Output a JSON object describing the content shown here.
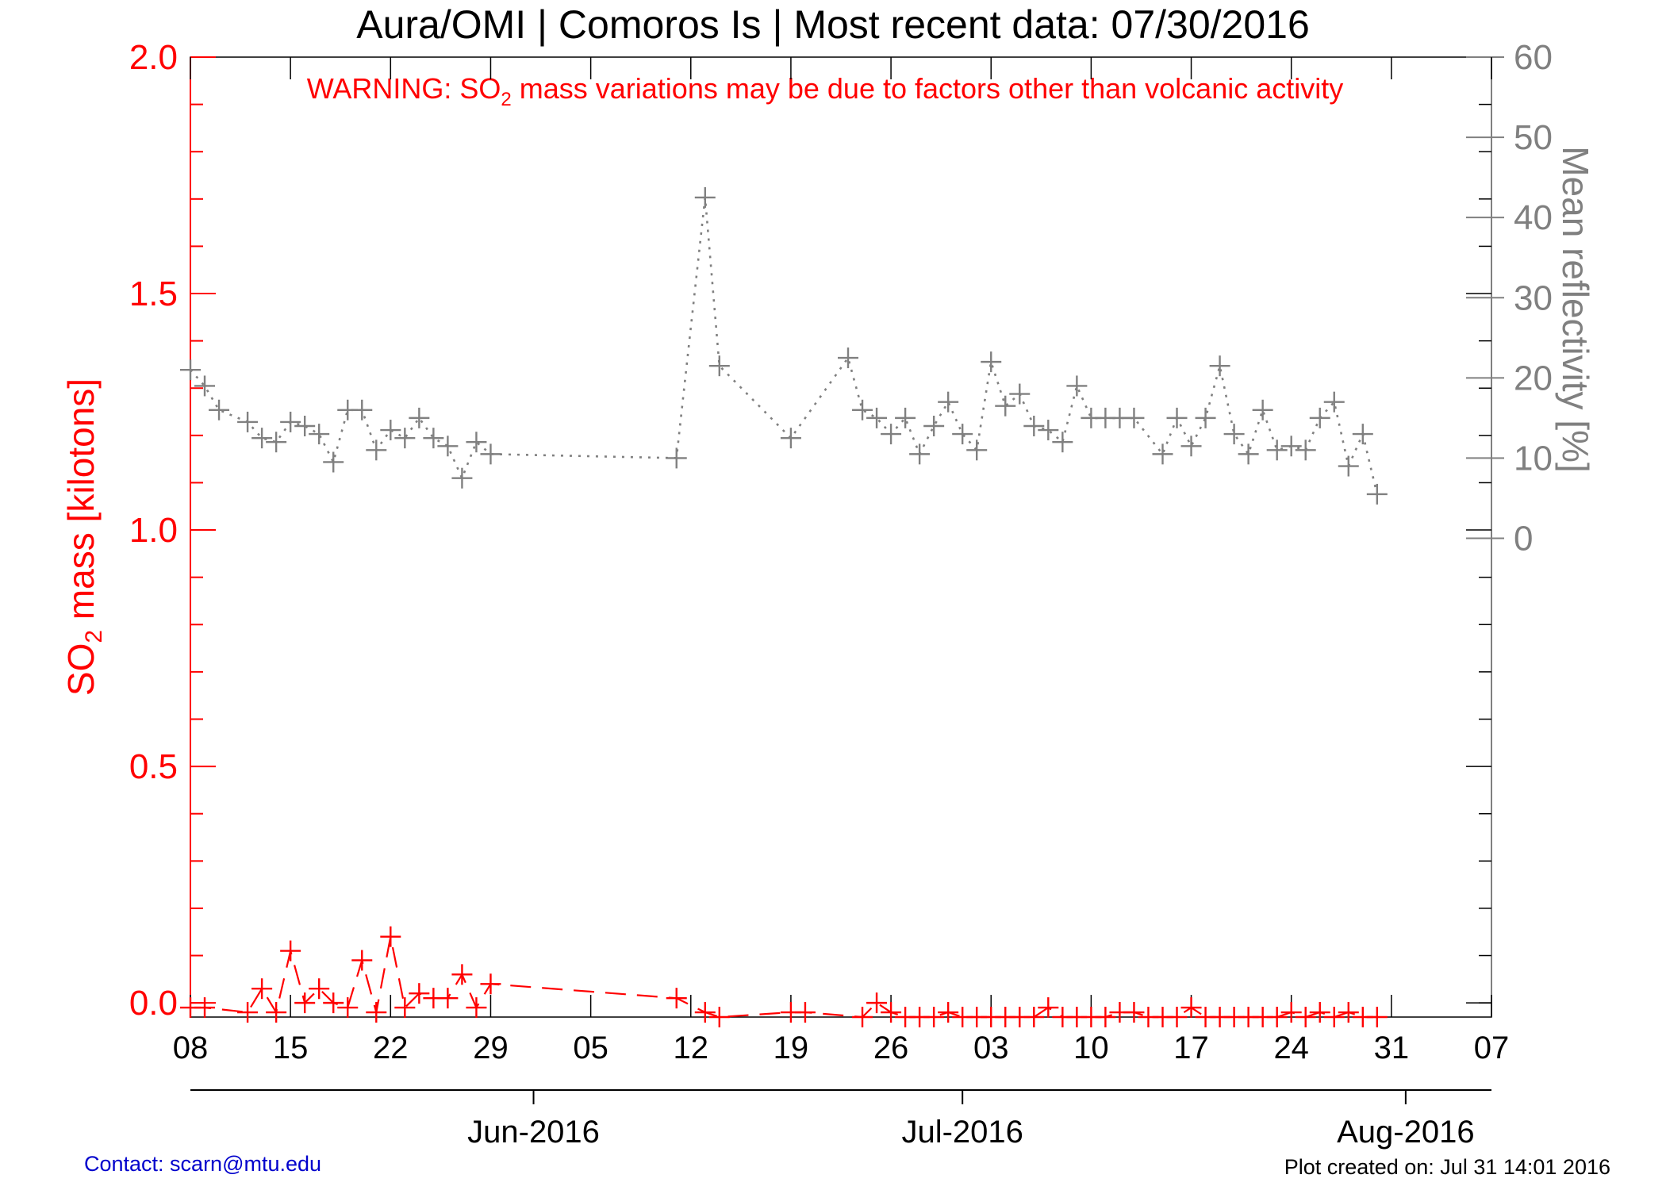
{
  "chart_data": {
    "type": "line",
    "title": "Aura/OMI | Comoros Is | Most recent data: 07/30/2016",
    "warning": {
      "prefix": "WARNING: SO",
      "subscript": "2",
      "suffix": " mass variations may be due to factors other than volcanic activity"
    },
    "ylabel_left": {
      "prefix": "SO",
      "subscript": "2",
      "suffix": " mass [kilotons]"
    },
    "ylabel_right": "Mean reflectivity [%]",
    "ylim_left": [
      -0.03,
      2.0
    ],
    "ylim_right": [
      -59.7,
      60
    ],
    "yticks_left": [
      "0.0",
      "0.5",
      "1.0",
      "1.5",
      "2.0"
    ],
    "yticks_right": [
      "0",
      "10",
      "20",
      "30",
      "40",
      "50",
      "60"
    ],
    "xlim": [
      "2016-05-08",
      "2016-08-07"
    ],
    "xticks": [
      "08",
      "15",
      "22",
      "29",
      "05",
      "12",
      "19",
      "26",
      "03",
      "10",
      "17",
      "24",
      "31",
      "07"
    ],
    "month_labels": [
      "Jun-2016",
      "Jul-2016",
      "Aug-2016"
    ],
    "series": [
      {
        "name": "",
        "axis": "left",
        "color": "#ff0000",
        "style": "dashed",
        "points": [
          [
            "2016-05-08",
            -0.01
          ],
          [
            "2016-05-09",
            -0.01
          ],
          [
            "2016-05-12",
            -0.02
          ],
          [
            "2016-05-13",
            0.03
          ],
          [
            "2016-05-14",
            -0.02
          ],
          [
            "2016-05-15",
            0.11
          ],
          [
            "2016-05-16",
            0.0
          ],
          [
            "2016-05-17",
            0.03
          ],
          [
            "2016-05-18",
            0.0
          ],
          [
            "2016-05-19",
            -0.01
          ],
          [
            "2016-05-20",
            0.09
          ],
          [
            "2016-05-21",
            -0.02
          ],
          [
            "2016-05-22",
            0.14
          ],
          [
            "2016-05-23",
            -0.01
          ],
          [
            "2016-05-24",
            0.02
          ],
          [
            "2016-05-25",
            0.01
          ],
          [
            "2016-05-26",
            0.01
          ],
          [
            "2016-05-27",
            0.06
          ],
          [
            "2016-05-28",
            -0.01
          ],
          [
            "2016-05-29",
            0.04
          ],
          [
            "2016-06-11",
            0.01
          ],
          [
            "2016-06-13",
            -0.02
          ],
          [
            "2016-06-14",
            -0.03
          ],
          [
            "2016-06-19",
            -0.02
          ],
          [
            "2016-06-20",
            -0.02
          ],
          [
            "2016-06-24",
            -0.03
          ],
          [
            "2016-06-25",
            0.0
          ],
          [
            "2016-06-26",
            -0.02
          ],
          [
            "2016-06-27",
            -0.03
          ],
          [
            "2016-06-28",
            -0.03
          ],
          [
            "2016-06-29",
            -0.03
          ],
          [
            "2016-06-30",
            -0.02
          ],
          [
            "2016-07-01",
            -0.03
          ],
          [
            "2016-07-02",
            -0.03
          ],
          [
            "2016-07-03",
            -0.03
          ],
          [
            "2016-07-04",
            -0.03
          ],
          [
            "2016-07-05",
            -0.03
          ],
          [
            "2016-07-06",
            -0.03
          ],
          [
            "2016-07-07",
            -0.01
          ],
          [
            "2016-07-08",
            -0.03
          ],
          [
            "2016-07-09",
            -0.03
          ],
          [
            "2016-07-10",
            -0.03
          ],
          [
            "2016-07-11",
            -0.03
          ],
          [
            "2016-07-12",
            -0.02
          ],
          [
            "2016-07-13",
            -0.02
          ],
          [
            "2016-07-14",
            -0.03
          ],
          [
            "2016-07-15",
            -0.03
          ],
          [
            "2016-07-16",
            -0.03
          ],
          [
            "2016-07-17",
            -0.01
          ],
          [
            "2016-07-18",
            -0.03
          ],
          [
            "2016-07-19",
            -0.03
          ],
          [
            "2016-07-20",
            -0.03
          ],
          [
            "2016-07-21",
            -0.03
          ],
          [
            "2016-07-22",
            -0.03
          ],
          [
            "2016-07-23",
            -0.03
          ],
          [
            "2016-07-24",
            -0.02
          ],
          [
            "2016-07-25",
            -0.03
          ],
          [
            "2016-07-26",
            -0.02
          ],
          [
            "2016-07-27",
            -0.03
          ],
          [
            "2016-07-28",
            -0.02
          ],
          [
            "2016-07-29",
            -0.03
          ],
          [
            "2016-07-30",
            -0.03
          ]
        ]
      },
      {
        "name": "",
        "axis": "right",
        "color": "#808080",
        "style": "dotted",
        "points": [
          [
            "2016-05-08",
            21
          ],
          [
            "2016-05-09",
            19
          ],
          [
            "2016-05-10",
            16
          ],
          [
            "2016-05-12",
            14.5
          ],
          [
            "2016-05-13",
            12.5
          ],
          [
            "2016-05-14",
            12
          ],
          [
            "2016-05-15",
            14.5
          ],
          [
            "2016-05-16",
            14
          ],
          [
            "2016-05-17",
            13
          ],
          [
            "2016-05-18",
            9.5
          ],
          [
            "2016-05-19",
            16
          ],
          [
            "2016-05-20",
            16
          ],
          [
            "2016-05-21",
            11
          ],
          [
            "2016-05-22",
            13.5
          ],
          [
            "2016-05-23",
            12.5
          ],
          [
            "2016-05-24",
            15
          ],
          [
            "2016-05-25",
            12.5
          ],
          [
            "2016-05-26",
            11.5
          ],
          [
            "2016-05-27",
            7.5
          ],
          [
            "2016-05-28",
            12
          ],
          [
            "2016-05-29",
            10.5
          ],
          [
            "2016-06-11",
            10
          ],
          [
            "2016-06-13",
            42.5
          ],
          [
            "2016-06-14",
            21.5
          ],
          [
            "2016-06-19",
            12.5
          ],
          [
            "2016-06-23",
            22.5
          ],
          [
            "2016-06-24",
            16
          ],
          [
            "2016-06-25",
            15
          ],
          [
            "2016-06-26",
            13
          ],
          [
            "2016-06-27",
            15
          ],
          [
            "2016-06-28",
            10.5
          ],
          [
            "2016-06-29",
            14
          ],
          [
            "2016-06-30",
            17
          ],
          [
            "2016-07-01",
            13
          ],
          [
            "2016-07-02",
            11
          ],
          [
            "2016-07-03",
            22
          ],
          [
            "2016-07-04",
            16.5
          ],
          [
            "2016-07-05",
            18
          ],
          [
            "2016-07-06",
            14
          ],
          [
            "2016-07-07",
            13.5
          ],
          [
            "2016-07-08",
            12
          ],
          [
            "2016-07-09",
            19
          ],
          [
            "2016-07-10",
            15
          ],
          [
            "2016-07-11",
            15
          ],
          [
            "2016-07-12",
            15
          ],
          [
            "2016-07-13",
            15
          ],
          [
            "2016-07-15",
            10.5
          ],
          [
            "2016-07-16",
            15
          ],
          [
            "2016-07-17",
            11.5
          ],
          [
            "2016-07-18",
            15
          ],
          [
            "2016-07-19",
            21.5
          ],
          [
            "2016-07-20",
            13
          ],
          [
            "2016-07-21",
            10.5
          ],
          [
            "2016-07-22",
            16
          ],
          [
            "2016-07-23",
            11
          ],
          [
            "2016-07-24",
            11.5
          ],
          [
            "2016-07-25",
            11
          ],
          [
            "2016-07-26",
            15
          ],
          [
            "2016-07-27",
            17
          ],
          [
            "2016-07-28",
            9
          ],
          [
            "2016-07-29",
            13
          ],
          [
            "2016-07-30",
            5.5
          ]
        ]
      }
    ]
  },
  "footer": {
    "contact": "Contact: scarn@mtu.edu",
    "created": "Plot created on: Jul 31 14:01 2016"
  }
}
